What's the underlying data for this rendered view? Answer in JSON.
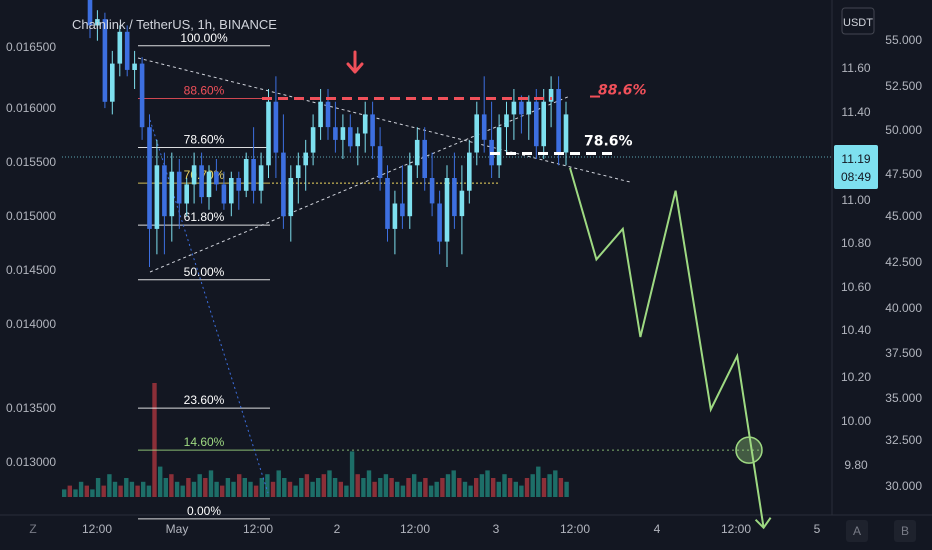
{
  "header": {
    "symbol_title": "Chainlink / TetherUS, 1h, BINANCE",
    "currency_button": "USDT"
  },
  "colors": {
    "background": "#131722",
    "bull": "#7ee0ef",
    "bear": "#3d6fe0",
    "vol_up": "#1d6e68",
    "vol_down": "#8b2f38",
    "projection": "#9ed982",
    "resistance": "#f0505a",
    "fib_target": "#f0d860"
  },
  "chart_data": {
    "type": "candlestick",
    "title": "Chainlink / TetherUS, 1h, BINANCE",
    "x_tick_labels": [
      "12:00",
      "May",
      "12:00",
      "2",
      "12:00",
      "3",
      "12:00",
      "4",
      "12:00",
      "5"
    ],
    "left_axis": {
      "ticks": [
        "0.016500",
        "0.016000",
        "0.015500",
        "0.015000",
        "0.014500",
        "0.014000",
        "0.013500",
        "0.013000"
      ],
      "range": [
        0.01275,
        0.0168
      ]
    },
    "price_axis": {
      "unit": "USDT",
      "ticks": [
        "11.60",
        "11.40",
        "11.00",
        "10.80",
        "10.60",
        "10.40",
        "10.20",
        "10.00",
        "9.80"
      ],
      "current_price": "11.19",
      "countdown": "08:49"
    },
    "right_axis": {
      "ticks": [
        "55.000",
        "52.500",
        "50.000",
        "47.500",
        "45.000",
        "42.500",
        "40.000",
        "37.500",
        "35.000",
        "32.500",
        "30.000"
      ]
    },
    "fib_levels": [
      {
        "label": "100.00%",
        "value": 0.01644
      },
      {
        "label": "88.60%",
        "value": 0.016025
      },
      {
        "label": "78.60%",
        "value": 0.01564
      },
      {
        "label": "70.70%",
        "value": 0.01536
      },
      {
        "label": "61.80%",
        "value": 0.01503
      },
      {
        "label": "50.00%",
        "value": 0.0146
      },
      {
        "label": "23.60%",
        "value": 0.01359
      },
      {
        "label": "14.60%",
        "value": 0.01326
      },
      {
        "label": "0.00%",
        "value": 0.01272
      }
    ],
    "annotations": {
      "resistance_label": "88.6%",
      "resistance_level": 0.016025,
      "support_label": "78.6%",
      "support_level": 0.01564
    },
    "candles": [
      [
        0.0168,
        0.0169,
        0.0165,
        0.0166
      ],
      [
        0.0166,
        0.01672,
        0.01648,
        0.01665
      ],
      [
        0.01665,
        0.0167,
        0.01595,
        0.016
      ],
      [
        0.016,
        0.0164,
        0.0159,
        0.0163
      ],
      [
        0.0163,
        0.0166,
        0.0162,
        0.01655
      ],
      [
        0.01655,
        0.0166,
        0.0162,
        0.01625
      ],
      [
        0.01625,
        0.0164,
        0.0161,
        0.0163
      ],
      [
        0.0163,
        0.01635,
        0.0157,
        0.0158
      ],
      [
        0.0158,
        0.0159,
        0.0147,
        0.015
      ],
      [
        0.015,
        0.0157,
        0.0148,
        0.0155
      ],
      [
        0.0155,
        0.0156,
        0.0148,
        0.0151
      ],
      [
        0.0151,
        0.0156,
        0.0149,
        0.01545
      ],
      [
        0.01545,
        0.01555,
        0.015,
        0.0152
      ],
      [
        0.0152,
        0.0154,
        0.0151,
        0.01535
      ],
      [
        0.01535,
        0.0156,
        0.0152,
        0.0155
      ],
      [
        0.0155,
        0.0156,
        0.0152,
        0.01525
      ],
      [
        0.01525,
        0.0155,
        0.01515,
        0.01545
      ],
      [
        0.01545,
        0.01555,
        0.0153,
        0.01535
      ],
      [
        0.01535,
        0.01545,
        0.01515,
        0.0152
      ],
      [
        0.0152,
        0.01545,
        0.0151,
        0.0154
      ],
      [
        0.0154,
        0.01545,
        0.01515,
        0.0153
      ],
      [
        0.0153,
        0.0156,
        0.01525,
        0.01555
      ],
      [
        0.01555,
        0.0158,
        0.0152,
        0.0153
      ],
      [
        0.0153,
        0.0156,
        0.0152,
        0.0155
      ],
      [
        0.0155,
        0.0161,
        0.0154,
        0.016
      ],
      [
        0.016,
        0.0162,
        0.0154,
        0.0156
      ],
      [
        0.0156,
        0.0159,
        0.015,
        0.0151
      ],
      [
        0.0151,
        0.0155,
        0.0149,
        0.0154
      ],
      [
        0.0154,
        0.0156,
        0.0152,
        0.0155
      ],
      [
        0.0155,
        0.0157,
        0.0153,
        0.0156
      ],
      [
        0.0156,
        0.0159,
        0.0155,
        0.0158
      ],
      [
        0.0158,
        0.0161,
        0.0157,
        0.016
      ],
      [
        0.016,
        0.0161,
        0.0157,
        0.0158
      ],
      [
        0.0158,
        0.016,
        0.0156,
        0.0157
      ],
      [
        0.0157,
        0.0159,
        0.01555,
        0.0158
      ],
      [
        0.0158,
        0.0159,
        0.0156,
        0.01565
      ],
      [
        0.01565,
        0.0158,
        0.0155,
        0.01575
      ],
      [
        0.01575,
        0.016,
        0.0156,
        0.0159
      ],
      [
        0.0159,
        0.016,
        0.01555,
        0.01565
      ],
      [
        0.01565,
        0.0158,
        0.0153,
        0.0154
      ],
      [
        0.0154,
        0.0155,
        0.0149,
        0.015
      ],
      [
        0.015,
        0.0153,
        0.0148,
        0.0152
      ],
      [
        0.0152,
        0.0155,
        0.015,
        0.0151
      ],
      [
        0.0151,
        0.0156,
        0.015,
        0.0155
      ],
      [
        0.0155,
        0.0158,
        0.0154,
        0.0157
      ],
      [
        0.0157,
        0.0158,
        0.0153,
        0.0154
      ],
      [
        0.0154,
        0.0156,
        0.0151,
        0.0152
      ],
      [
        0.0152,
        0.0153,
        0.0148,
        0.0149
      ],
      [
        0.0149,
        0.0155,
        0.0147,
        0.0154
      ],
      [
        0.0154,
        0.0156,
        0.015,
        0.0151
      ],
      [
        0.0151,
        0.0155,
        0.0148,
        0.0153
      ],
      [
        0.0153,
        0.0157,
        0.0152,
        0.0156
      ],
      [
        0.0156,
        0.016,
        0.0155,
        0.0159
      ],
      [
        0.0159,
        0.0162,
        0.0156,
        0.0157
      ],
      [
        0.0157,
        0.016,
        0.0154,
        0.0155
      ],
      [
        0.0155,
        0.0159,
        0.0154,
        0.0158
      ],
      [
        0.0158,
        0.016,
        0.0156,
        0.0159
      ],
      [
        0.0159,
        0.0161,
        0.0157,
        0.016
      ],
      [
        0.016,
        0.01605,
        0.01575,
        0.0159
      ],
      [
        0.0159,
        0.01605,
        0.0157,
        0.016
      ],
      [
        0.016,
        0.0161,
        0.01555,
        0.01565
      ],
      [
        0.01565,
        0.0161,
        0.01555,
        0.016
      ],
      [
        0.016,
        0.0162,
        0.0158,
        0.0161
      ],
      [
        0.0161,
        0.0162,
        0.0155,
        0.0156
      ],
      [
        0.0156,
        0.016,
        0.0155,
        0.0159
      ]
    ],
    "volumes": [
      2,
      3,
      2,
      4,
      3,
      2,
      5,
      3,
      6,
      4,
      3,
      5,
      4,
      3,
      4,
      3,
      30,
      8,
      5,
      6,
      4,
      3,
      5,
      4,
      6,
      5,
      7,
      4,
      3,
      5,
      4,
      6,
      5,
      4,
      3,
      5,
      6,
      4,
      7,
      5,
      4,
      3,
      5,
      6,
      4,
      5,
      6,
      7,
      5,
      4,
      3,
      12,
      6,
      5,
      7,
      4,
      5,
      6,
      5,
      4,
      3,
      5,
      6,
      4,
      5,
      3,
      4,
      5,
      6,
      7,
      5,
      4,
      3,
      5,
      6,
      7,
      5,
      4,
      6,
      5,
      4,
      3,
      5,
      6,
      8,
      5,
      6,
      7,
      5,
      4
    ],
    "projection_path": [
      [
        0.01548,
        0
      ],
      [
        0.01476,
        6
      ],
      [
        0.015,
        12
      ],
      [
        0.01415,
        16
      ],
      [
        0.0153,
        24
      ],
      [
        0.01358,
        32
      ],
      [
        0.014,
        38
      ],
      [
        0.01265,
        44
      ]
    ],
    "target_level": 0.01326
  }
}
